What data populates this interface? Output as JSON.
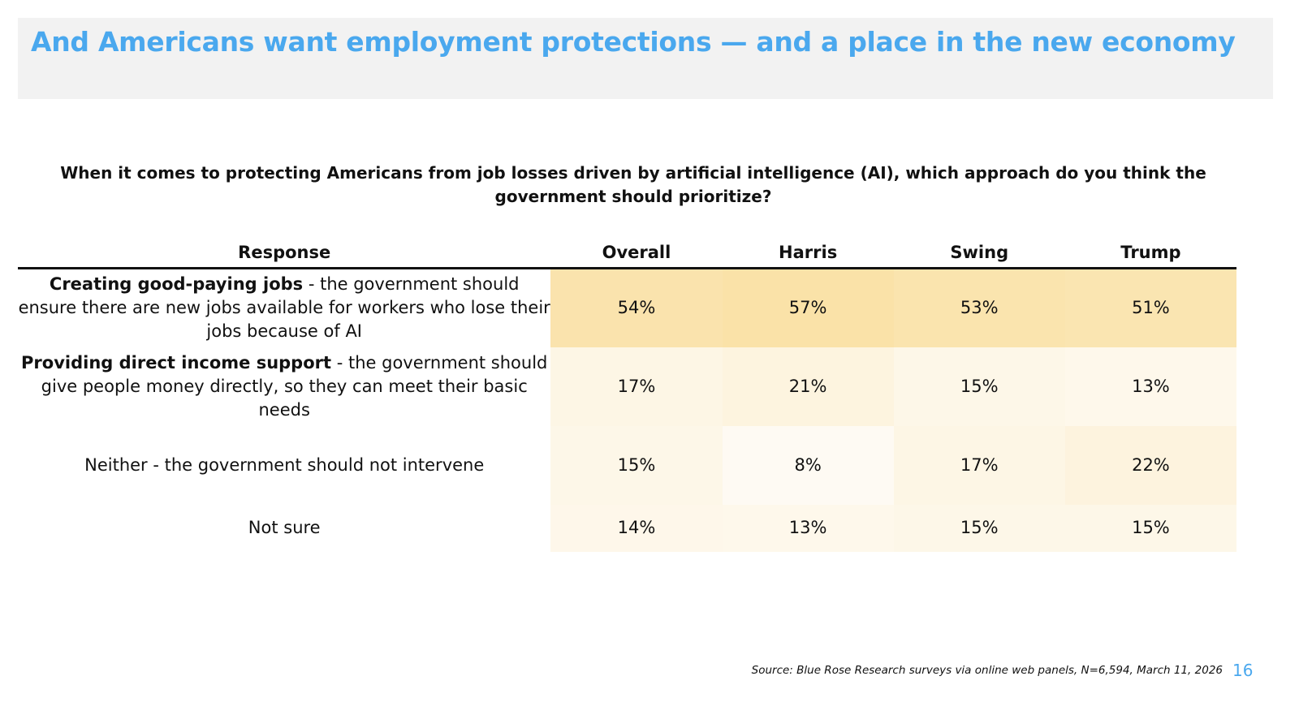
{
  "title": "And Americans want employment protections — and a place in the new economy",
  "question": "When it comes to protecting Americans from job losses driven by artificial intelligence (AI), which approach do you think the government should prioritize?",
  "colors": {
    "title": "#4aa8ee",
    "heat_low": "#fefaf3",
    "heat_high": "#fae2a8"
  },
  "chart_data": {
    "type": "table",
    "columns": [
      "Response",
      "Overall",
      "Harris",
      "Swing",
      "Trump"
    ],
    "rows": [
      {
        "bold": "Creating good-paying jobs",
        "rest": " - the government should ensure there are new jobs available for workers who lose their jobs because of AI",
        "values": [
          54,
          57,
          53,
          51
        ],
        "labels": [
          "54%",
          "57%",
          "53%",
          "51%"
        ]
      },
      {
        "bold": "Providing direct income support",
        "rest": " - the government should give people money directly, so they can meet their basic needs",
        "values": [
          17,
          21,
          15,
          13
        ],
        "labels": [
          "17%",
          "21%",
          "15%",
          "13%"
        ]
      },
      {
        "bold": "",
        "rest": "Neither - the government should not intervene",
        "values": [
          15,
          8,
          17,
          22
        ],
        "labels": [
          "15%",
          "8%",
          "17%",
          "22%"
        ]
      },
      {
        "bold": "",
        "rest": "Not sure",
        "values": [
          14,
          13,
          15,
          15
        ],
        "labels": [
          "14%",
          "13%",
          "15%",
          "15%"
        ]
      }
    ]
  },
  "footer": {
    "source": "Source: Blue Rose Research surveys via online web panels, N=6,594, March 11, 2026",
    "page": "16"
  }
}
